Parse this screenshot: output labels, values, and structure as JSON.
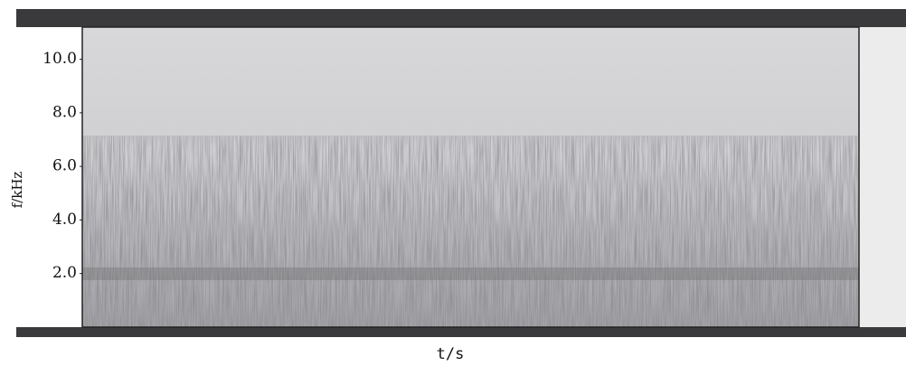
{
  "chart_data": {
    "type": "spectrogram",
    "ylabel": "f/kHz",
    "xlabel": "t/s",
    "ylim": [
      0,
      11.2
    ],
    "yticks": [
      {
        "value": 2,
        "label": "2.0"
      },
      {
        "value": 4,
        "label": "4.0"
      },
      {
        "value": 6,
        "label": "6.0"
      },
      {
        "value": 8,
        "label": "8.0"
      },
      {
        "value": 10,
        "label": "10.0"
      }
    ]
  }
}
